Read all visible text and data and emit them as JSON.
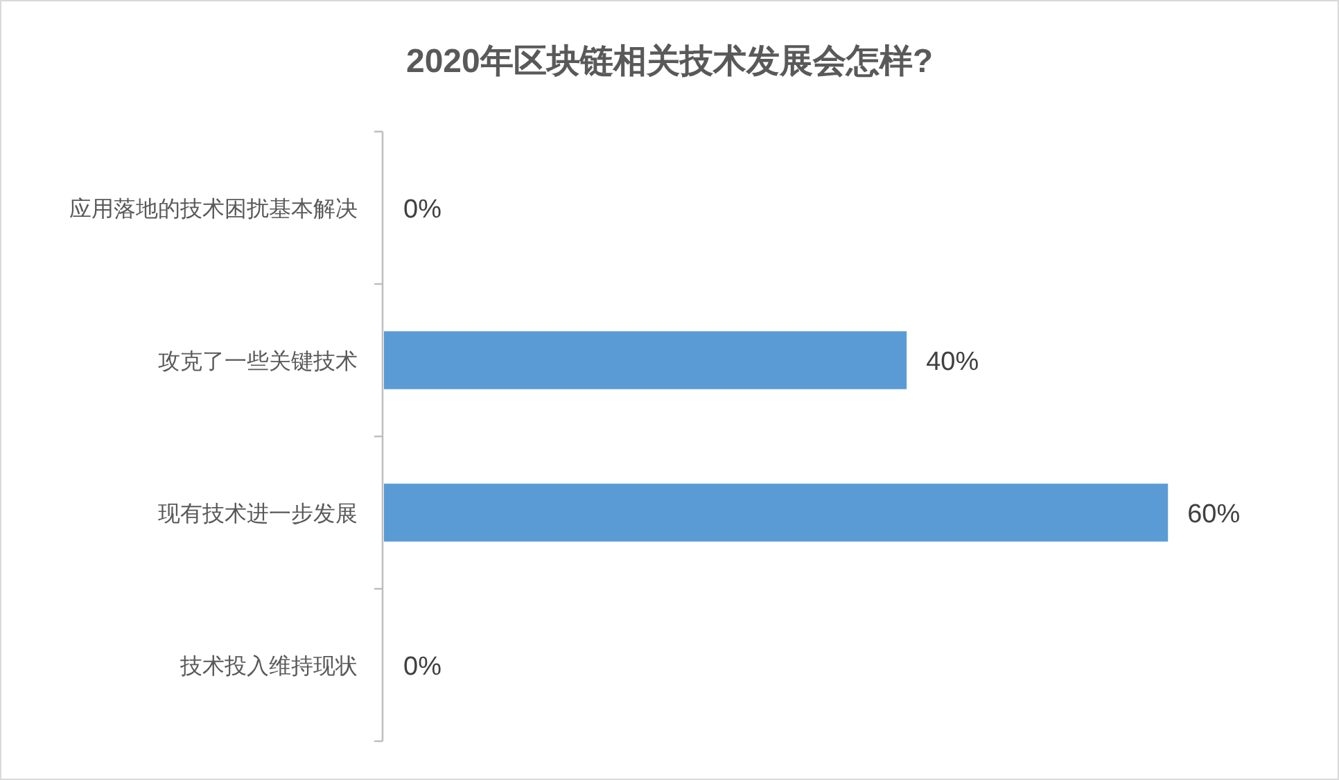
{
  "chart_data": {
    "type": "bar",
    "orientation": "horizontal",
    "title": "2020年区块链相关技术发展会怎样?",
    "categories": [
      "应用落地的技术困扰基本解决",
      "攻克了一些关键技术",
      "现有技术进一步发展",
      "技术投入维持现状"
    ],
    "values": [
      0,
      40,
      60,
      0
    ],
    "value_labels": [
      "0%",
      "40%",
      "60%",
      "0%"
    ],
    "color": "#5b9bd5",
    "grid": false
  }
}
